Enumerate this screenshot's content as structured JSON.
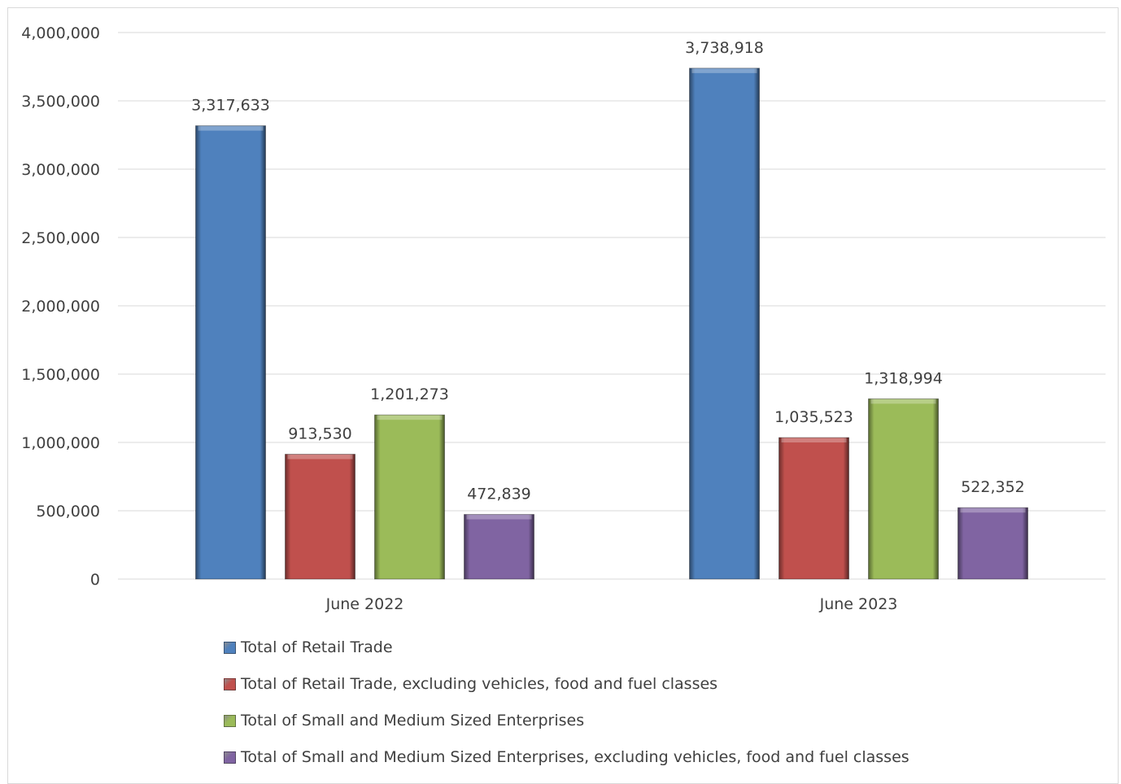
{
  "chart_data": {
    "type": "bar",
    "categories": [
      "June 2022",
      "June 2023"
    ],
    "series": [
      {
        "name": "Total of Retail Trade",
        "color": "#4f81bd",
        "values": [
          3317633,
          3738918
        ],
        "labels": [
          "3,317,633",
          "3,738,918"
        ]
      },
      {
        "name": "Total of Retail Trade, excluding vehicles, food and fuel classes",
        "color": "#c0504d",
        "values": [
          913530,
          1035523
        ],
        "labels": [
          "913,530",
          "1,035,523"
        ]
      },
      {
        "name": "Total of Small and Medium Sized Enterprises",
        "color": "#9bbb59",
        "values": [
          1201273,
          1318994
        ],
        "labels": [
          "1,201,273",
          "1,318,994"
        ]
      },
      {
        "name": "Total of Small and Medium Sized Enterprises, excluding vehicles, food and fuel classes",
        "color": "#8064a2",
        "values": [
          472839,
          522352
        ],
        "labels": [
          "472,839",
          "522,352"
        ]
      }
    ],
    "ylim": [
      0,
      4000000
    ],
    "yticks": [
      0,
      500000,
      1000000,
      1500000,
      2000000,
      2500000,
      3000000,
      3500000,
      4000000
    ],
    "ytick_labels": [
      "0",
      "500,000",
      "1,000,000",
      "1,500,000",
      "2,000,000",
      "2,500,000",
      "3,000,000",
      "3,500,000",
      "4,000,000"
    ],
    "grid": true,
    "legend_position": "bottom",
    "title": "",
    "xlabel": "",
    "ylabel": ""
  }
}
